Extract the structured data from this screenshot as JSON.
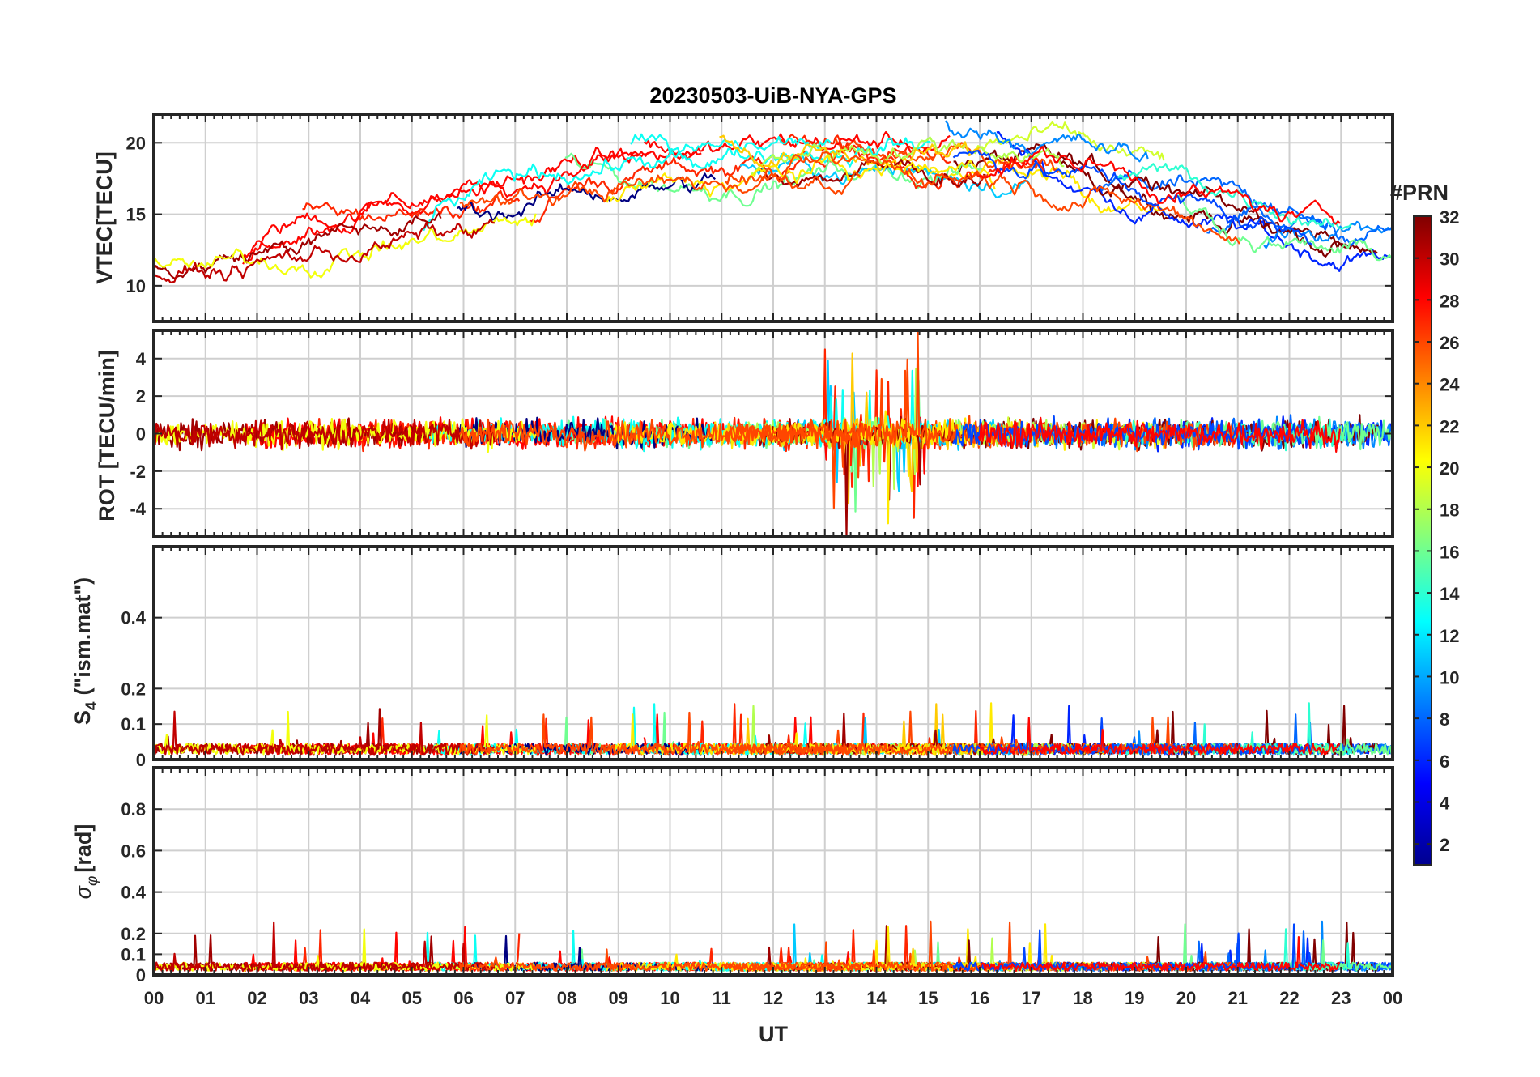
{
  "chart_data": {
    "type": "line",
    "title": "20230503-UiB-NYA-GPS",
    "xlabel": "UT",
    "x_tick_labels": [
      "00",
      "01",
      "02",
      "03",
      "04",
      "05",
      "06",
      "07",
      "08",
      "09",
      "10",
      "11",
      "12",
      "13",
      "14",
      "15",
      "16",
      "17",
      "18",
      "19",
      "20",
      "21",
      "22",
      "23",
      "00"
    ],
    "xlim": [
      0,
      24
    ],
    "grid": true,
    "colorbar": {
      "label": "#PRN",
      "range": [
        1,
        32
      ],
      "ticks": [
        "2",
        "4",
        "6",
        "8",
        "10",
        "12",
        "14",
        "16",
        "18",
        "20",
        "22",
        "24",
        "26",
        "28",
        "30",
        "32"
      ],
      "colormap": "jet",
      "placement": "right"
    },
    "panels": [
      {
        "name": "vtec",
        "ylabel": "VTEC[TECU]",
        "ylim": [
          7.5,
          22
        ],
        "yticks": [
          10,
          15,
          20
        ],
        "approx_envelope_x": [
          0,
          2,
          4,
          6,
          8,
          10,
          12,
          14,
          16,
          18,
          20,
          22,
          24
        ],
        "approx_envelope_y": [
          12,
          14,
          15,
          16,
          18,
          18,
          19,
          19,
          19,
          17,
          15,
          13,
          13
        ]
      },
      {
        "name": "rot",
        "ylabel": "ROT [TECU/min]",
        "ylim": [
          -5.5,
          5.5
        ],
        "yticks": [
          -4,
          -2,
          0,
          2,
          4
        ],
        "typical_amplitude": 0.6,
        "spike_time_ut": 14,
        "spike_max_abs": 5.5
      },
      {
        "name": "s4",
        "ylabel": "S4 (\"ism.mat\")",
        "ylim": [
          0,
          0.6
        ],
        "yticks": [
          0,
          0.1,
          0.2,
          0.4
        ],
        "typical_level": 0.03,
        "max_value": 0.16
      },
      {
        "name": "sigma_phi",
        "ylabel": "σφ[rad]",
        "ylim": [
          0,
          1
        ],
        "yticks": [
          0,
          0.1,
          0.2,
          0.4,
          0.6,
          0.8
        ],
        "typical_level": 0.04,
        "max_value": 0.26
      }
    ]
  },
  "labels": {
    "s4_base": "S",
    "s4_sub": "4",
    "s4_rest": "(\"ism.mat\")",
    "sigma_base": "σ",
    "sigma_sub": "φ",
    "sigma_rest": "[rad]"
  }
}
